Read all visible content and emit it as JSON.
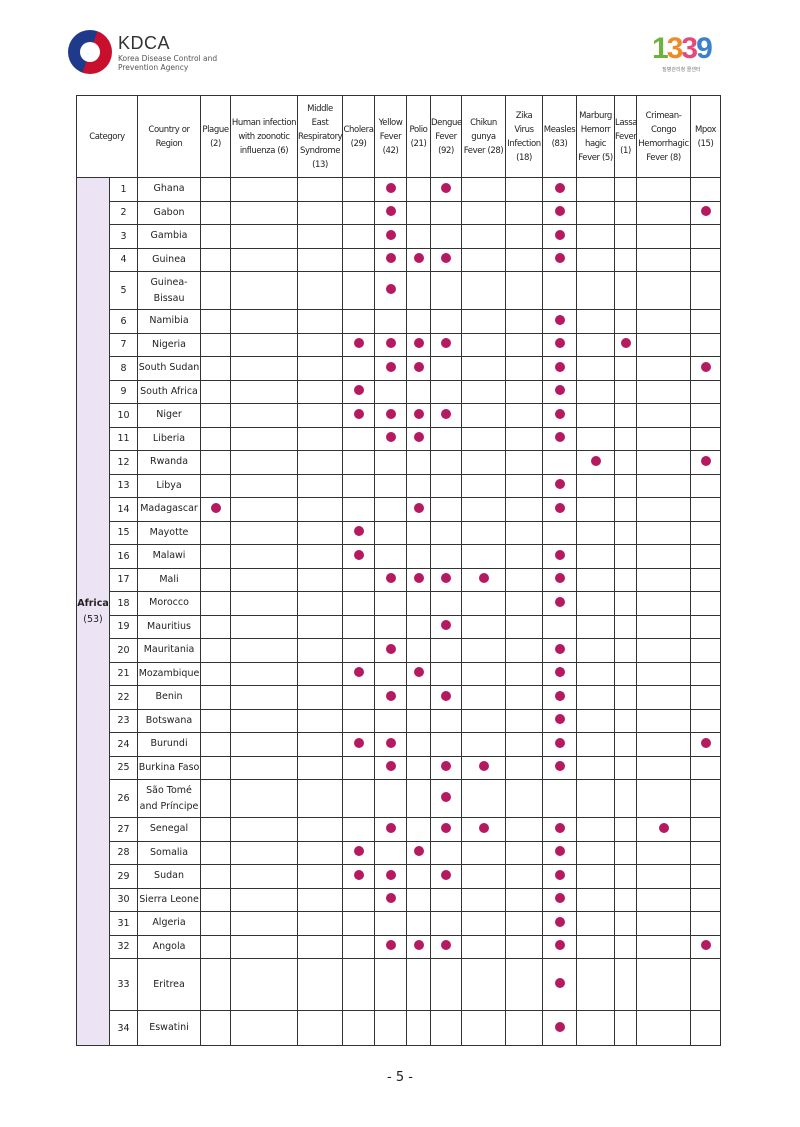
{
  "header": {
    "org_short": "KDCA",
    "org_full_line1": "Korea Disease Control and",
    "org_full_line2": "Prevention Agency",
    "hotline_logo": "1339",
    "hotline_sub": "질병관리청 콜센터"
  },
  "table": {
    "category_header": "Category",
    "country_header": "Country or Region",
    "columns": [
      {
        "label": "Plague (2)"
      },
      {
        "label": "Human infection with zoonotic influenza (6)"
      },
      {
        "label": "Middle East Respiratory Syndrome (13)"
      },
      {
        "label": "Cholera (29)"
      },
      {
        "label": "Yellow Fever (42)"
      },
      {
        "label": "Polio (21)"
      },
      {
        "label": "Dengue Fever (92)"
      },
      {
        "label": "Chikun gunya Fever (28)"
      },
      {
        "label": "Zika Virus Infection (18)"
      },
      {
        "label": "Measles (83)"
      },
      {
        "label": "Marburg Hemorr hagic Fever (5)"
      },
      {
        "label": "Lassa Fever (1)"
      },
      {
        "label": "Crimean-Congo Hemorrhagic Fever (8)"
      },
      {
        "label": "Mpox (15)"
      }
    ],
    "mark_color": "#b5195f",
    "category": {
      "name": "Africa",
      "count": "(53)"
    },
    "rows": [
      {
        "no": "1",
        "country": "Ghana",
        "marks": [
          4,
          6,
          9
        ]
      },
      {
        "no": "2",
        "country": "Gabon",
        "marks": [
          4,
          9,
          13
        ]
      },
      {
        "no": "3",
        "country": "Gambia",
        "marks": [
          4,
          9
        ]
      },
      {
        "no": "4",
        "country": "Guinea",
        "marks": [
          4,
          5,
          6,
          9
        ]
      },
      {
        "no": "5",
        "country": "Guinea-Bissau",
        "marks": [
          4
        ]
      },
      {
        "no": "6",
        "country": "Namibia",
        "marks": [
          9
        ]
      },
      {
        "no": "7",
        "country": "Nigeria",
        "marks": [
          3,
          4,
          5,
          6,
          9,
          11
        ]
      },
      {
        "no": "8",
        "country": "South Sudan",
        "marks": [
          4,
          5,
          9,
          13
        ]
      },
      {
        "no": "9",
        "country": "South Africa",
        "marks": [
          3,
          9
        ]
      },
      {
        "no": "10",
        "country": "Niger",
        "marks": [
          3,
          4,
          5,
          6,
          9
        ]
      },
      {
        "no": "11",
        "country": "Liberia",
        "marks": [
          4,
          5,
          9
        ]
      },
      {
        "no": "12",
        "country": "Rwanda",
        "marks": [
          10,
          13
        ]
      },
      {
        "no": "13",
        "country": "Libya",
        "marks": [
          9
        ]
      },
      {
        "no": "14",
        "country": "Madagascar",
        "marks": [
          0,
          5,
          9
        ]
      },
      {
        "no": "15",
        "country": "Mayotte",
        "marks": [
          3
        ]
      },
      {
        "no": "16",
        "country": "Malawi",
        "marks": [
          3,
          9
        ]
      },
      {
        "no": "17",
        "country": "Mali",
        "marks": [
          4,
          5,
          6,
          7,
          9
        ]
      },
      {
        "no": "18",
        "country": "Morocco",
        "marks": [
          9
        ]
      },
      {
        "no": "19",
        "country": "Mauritius",
        "marks": [
          6
        ]
      },
      {
        "no": "20",
        "country": "Mauritania",
        "marks": [
          4,
          9
        ]
      },
      {
        "no": "21",
        "country": "Mozambique",
        "marks": [
          3,
          5,
          9
        ]
      },
      {
        "no": "22",
        "country": "Benin",
        "marks": [
          4,
          6,
          9
        ]
      },
      {
        "no": "23",
        "country": "Botswana",
        "marks": [
          9
        ]
      },
      {
        "no": "24",
        "country": "Burundi",
        "marks": [
          3,
          4,
          9,
          13
        ]
      },
      {
        "no": "25",
        "country": "Burkina Faso",
        "marks": [
          4,
          6,
          7,
          9
        ]
      },
      {
        "no": "26",
        "country": "São Tomé and Príncipe",
        "marks": [
          6
        ]
      },
      {
        "no": "27",
        "country": "Senegal",
        "marks": [
          4,
          6,
          7,
          9,
          12
        ]
      },
      {
        "no": "28",
        "country": "Somalia",
        "marks": [
          3,
          5,
          9
        ]
      },
      {
        "no": "29",
        "country": "Sudan",
        "marks": [
          3,
          4,
          6,
          9
        ]
      },
      {
        "no": "30",
        "country": "Sierra Leone",
        "marks": [
          4,
          9
        ]
      },
      {
        "no": "31",
        "country": "Algeria",
        "marks": [
          9
        ]
      },
      {
        "no": "32",
        "country": "Angola",
        "marks": [
          4,
          5,
          6,
          9,
          13
        ]
      },
      {
        "no": "33",
        "country": "Eritrea",
        "marks": [
          9
        ]
      },
      {
        "no": "34",
        "country": "Eswatini",
        "marks": [
          9
        ]
      }
    ]
  },
  "footer": {
    "page_number": "- 5 -"
  }
}
